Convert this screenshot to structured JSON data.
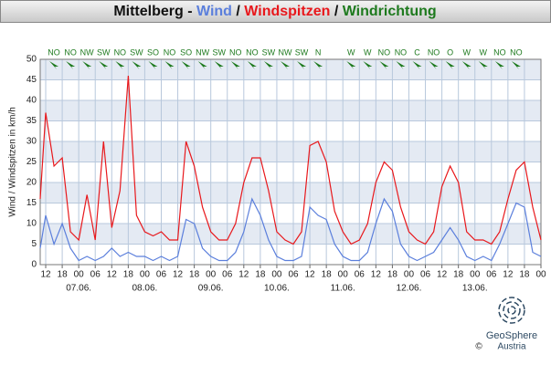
{
  "chart_data": {
    "type": "line",
    "title_parts": [
      "Mittelberg - ",
      "Wind",
      " / ",
      "Windspitzen",
      " / ",
      "Windrichtung"
    ],
    "y_label": "Wind / Windspitzen in km/h",
    "x": [
      10,
      12,
      15,
      18,
      21,
      24,
      27,
      30,
      33,
      36,
      39,
      42,
      45,
      48,
      51,
      54,
      57,
      60,
      63,
      66,
      69,
      72,
      75,
      78,
      81,
      84,
      87,
      90,
      93,
      96,
      99,
      102,
      105,
      108,
      111,
      114,
      117,
      120,
      123,
      126,
      129,
      132,
      135,
      138,
      141,
      144,
      147,
      150,
      153,
      156,
      159,
      162,
      165,
      168,
      171,
      174,
      177,
      180,
      183,
      186,
      189,
      192
    ],
    "series": [
      {
        "name": "Wind",
        "color": "#5b7fdc",
        "values": [
          4,
          12,
          5,
          10,
          4,
          1,
          2,
          1,
          2,
          4,
          2,
          3,
          2,
          2,
          1,
          2,
          1,
          2,
          11,
          10,
          4,
          2,
          1,
          1,
          3,
          8,
          16,
          12,
          6,
          2,
          1,
          1,
          2,
          14,
          12,
          11,
          5,
          2,
          1,
          1,
          3,
          10,
          16,
          13,
          5,
          2,
          1,
          2,
          3,
          6,
          9,
          6,
          2,
          1,
          2,
          1,
          5,
          10,
          15,
          14,
          3,
          2
        ]
      },
      {
        "name": "Windspitzen",
        "color": "#e8181c",
        "values": [
          16,
          37,
          24,
          26,
          8,
          6,
          17,
          6,
          30,
          9,
          18,
          46,
          12,
          8,
          7,
          8,
          6,
          6,
          30,
          24,
          14,
          8,
          6,
          6,
          10,
          20,
          26,
          26,
          18,
          8,
          6,
          5,
          8,
          29,
          30,
          25,
          13,
          8,
          5,
          6,
          10,
          20,
          25,
          23,
          14,
          8,
          6,
          5,
          8,
          19,
          24,
          20,
          8,
          6,
          6,
          5,
          8,
          16,
          23,
          25,
          14,
          6
        ]
      }
    ],
    "direction": {
      "name": "Windrichtung",
      "color": "#1e7a1e",
      "x": [
        15,
        21,
        27,
        33,
        39,
        45,
        51,
        57,
        63,
        69,
        75,
        81,
        87,
        93,
        99,
        105,
        111,
        117,
        123,
        129,
        135,
        141,
        147,
        153,
        159,
        165,
        171,
        177,
        183
      ],
      "labels": [
        "NO",
        "NO",
        "NW",
        "SW",
        "NO",
        "SW",
        "SO",
        "NO",
        "SO",
        "NW",
        "SW",
        "NO",
        "NO",
        "SW",
        "NW",
        "SW",
        "N",
        null,
        "W",
        "W",
        "NO",
        "NO",
        "C",
        "NO",
        "O",
        "W",
        "W",
        "NO",
        "NO"
      ]
    },
    "xlim": [
      10,
      192
    ],
    "xticks": [
      {
        "value": 12,
        "label": "12"
      },
      {
        "value": 18,
        "label": "18"
      },
      {
        "value": 24,
        "label": "00"
      },
      {
        "value": 30,
        "label": "06"
      },
      {
        "value": 36,
        "label": "12"
      },
      {
        "value": 42,
        "label": "18"
      },
      {
        "value": 48,
        "label": "00"
      },
      {
        "value": 54,
        "label": "06"
      },
      {
        "value": 60,
        "label": "12"
      },
      {
        "value": 66,
        "label": "18"
      },
      {
        "value": 72,
        "label": "00"
      },
      {
        "value": 78,
        "label": "06"
      },
      {
        "value": 84,
        "label": "12"
      },
      {
        "value": 90,
        "label": "18"
      },
      {
        "value": 96,
        "label": "00"
      },
      {
        "value": 102,
        "label": "06"
      },
      {
        "value": 108,
        "label": "12"
      },
      {
        "value": 114,
        "label": "18"
      },
      {
        "value": 120,
        "label": "00"
      },
      {
        "value": 126,
        "label": "06"
      },
      {
        "value": 132,
        "label": "12"
      },
      {
        "value": 138,
        "label": "18"
      },
      {
        "value": 144,
        "label": "00"
      },
      {
        "value": 150,
        "label": "06"
      },
      {
        "value": 156,
        "label": "12"
      },
      {
        "value": 162,
        "label": "18"
      },
      {
        "value": 168,
        "label": "00"
      },
      {
        "value": 174,
        "label": "06"
      },
      {
        "value": 180,
        "label": "12"
      },
      {
        "value": 186,
        "label": "18"
      },
      {
        "value": 192,
        "label": "00"
      }
    ],
    "date_labels": [
      {
        "value": 24,
        "label": "07.06."
      },
      {
        "value": 48,
        "label": "08.06."
      },
      {
        "value": 72,
        "label": "09.06."
      },
      {
        "value": 96,
        "label": "10.06."
      },
      {
        "value": 120,
        "label": "11.06."
      },
      {
        "value": 144,
        "label": "12.06."
      },
      {
        "value": 168,
        "label": "13.06."
      }
    ],
    "ylim": [
      0,
      50
    ],
    "yticks": [
      0,
      5,
      10,
      15,
      20,
      25,
      30,
      35,
      40,
      45,
      50
    ],
    "grid": true,
    "logo": {
      "name": "GeoSphere",
      "sub": "Austria",
      "copyright": "©"
    }
  }
}
